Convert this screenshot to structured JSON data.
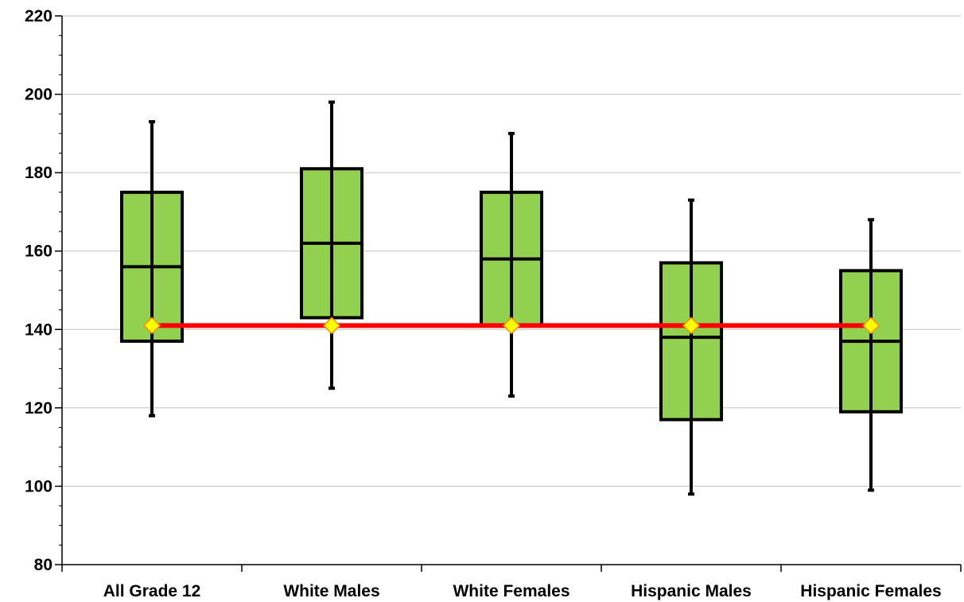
{
  "chart_data": {
    "type": "box",
    "title": "",
    "xlabel": "",
    "ylabel": "",
    "ylim": [
      80,
      220
    ],
    "yticks": [
      80,
      100,
      120,
      140,
      160,
      180,
      200,
      220
    ],
    "ytick_labels": [
      "80",
      "100",
      "120",
      "140",
      "160",
      "180",
      "200",
      "220"
    ],
    "minor_tick_step": 5,
    "grid": true,
    "categories": [
      "All Grade 12",
      "White Males",
      "White Females",
      "Hispanic Males",
      "Hispanic Females"
    ],
    "boxes": [
      {
        "min": 118,
        "q1": 137,
        "median": 156,
        "q3": 175,
        "max": 193
      },
      {
        "min": 125,
        "q1": 143,
        "median": 162,
        "q3": 181,
        "max": 198
      },
      {
        "min": 123,
        "q1": 141,
        "median": 158,
        "q3": 175,
        "max": 190
      },
      {
        "min": 98,
        "q1": 117,
        "median": 138,
        "q3": 157,
        "max": 173
      },
      {
        "min": 99,
        "q1": 119,
        "median": 137,
        "q3": 155,
        "max": 168
      }
    ],
    "reference_line": {
      "values": [
        141,
        141,
        141,
        141,
        141
      ]
    },
    "colors": {
      "box_fill": "#92d050",
      "box_stroke": "#000000",
      "reference_line": "#ff0000",
      "marker_fill": "#ffff00",
      "marker_stroke": "#ff8c00",
      "grid": "#c0c0c0"
    }
  }
}
